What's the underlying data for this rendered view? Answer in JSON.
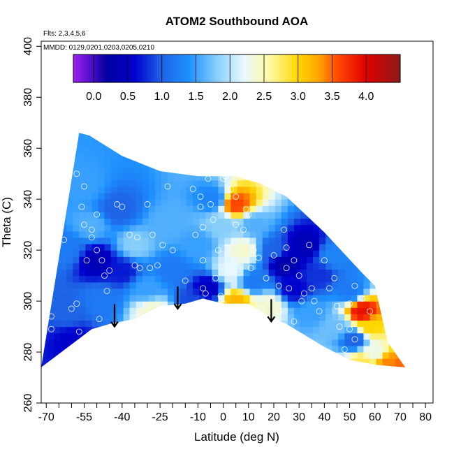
{
  "chart_data": {
    "type": "heatmap",
    "title": "ATOM2 Southbound AOA",
    "subtitle_flights": "Flts: 2,3,4,5,6",
    "subtitle_dates": "MMDD: 0129,0201,0203,0205,0210",
    "xlabel": "Latitude (deg N)",
    "ylabel": "Theta (C)",
    "xlim": [
      -72,
      83
    ],
    "ylim": [
      260,
      402
    ],
    "x_ticks_minor": [
      -70,
      -65,
      -60,
      -55,
      -50,
      -45,
      -40,
      -35,
      -30,
      -25,
      -20,
      -15,
      -10,
      -5,
      0,
      5,
      10,
      15,
      20,
      25,
      30,
      35,
      40,
      45,
      50,
      55,
      60,
      65,
      70,
      75,
      80
    ],
    "x_tick_labels": [
      {
        "v": -70,
        "t": "-70"
      },
      {
        "v": -55,
        "t": "-55"
      },
      {
        "v": -40,
        "t": "-40"
      },
      {
        "v": -25,
        "t": "-25"
      },
      {
        "v": -10,
        "t": "-10"
      },
      {
        "v": 0,
        "t": "0"
      },
      {
        "v": 10,
        "t": "10"
      },
      {
        "v": 20,
        "t": "20"
      },
      {
        "v": 30,
        "t": "30"
      },
      {
        "v": 40,
        "t": "40"
      },
      {
        "v": 50,
        "t": "50"
      },
      {
        "v": 60,
        "t": "60"
      },
      {
        "v": 70,
        "t": "70"
      },
      {
        "v": 80,
        "t": "80"
      }
    ],
    "y_ticks": [
      {
        "v": 260,
        "t": "260"
      },
      {
        "v": 280,
        "t": "280"
      },
      {
        "v": 300,
        "t": "300"
      },
      {
        "v": 320,
        "t": "320"
      },
      {
        "v": 340,
        "t": "340"
      },
      {
        "v": 360,
        "t": "360"
      },
      {
        "v": 380,
        "t": "380"
      },
      {
        "v": 400,
        "t": "400"
      }
    ],
    "colorbar": {
      "range": [
        -0.3,
        4.5
      ],
      "ticks": [
        {
          "v": 0.0,
          "t": "0.0"
        },
        {
          "v": 0.5,
          "t": "0.5"
        },
        {
          "v": 1.0,
          "t": "1.0"
        },
        {
          "v": 1.5,
          "t": "1.5"
        },
        {
          "v": 2.0,
          "t": "2.0"
        },
        {
          "v": 2.5,
          "t": "2.5"
        },
        {
          "v": 3.0,
          "t": "3.0"
        },
        {
          "v": 3.5,
          "t": "3.5"
        },
        {
          "v": 4.0,
          "t": "4.0"
        }
      ],
      "colors": [
        {
          "v": -0.3,
          "c": "#a020f0"
        },
        {
          "v": 0.2,
          "c": "#0000a0"
        },
        {
          "v": 0.6,
          "c": "#0000cd"
        },
        {
          "v": 1.0,
          "c": "#1e64e6"
        },
        {
          "v": 1.4,
          "c": "#1e90ff"
        },
        {
          "v": 1.8,
          "c": "#87cefa"
        },
        {
          "v": 2.2,
          "c": "#e8f8ff"
        },
        {
          "v": 2.6,
          "c": "#fff8a0"
        },
        {
          "v": 3.0,
          "c": "#ffd700"
        },
        {
          "v": 3.3,
          "c": "#ffa500"
        },
        {
          "v": 3.6,
          "c": "#ff4500"
        },
        {
          "v": 4.0,
          "c": "#e00000"
        },
        {
          "v": 4.5,
          "c": "#8b1a1a"
        }
      ]
    },
    "domain_top": [
      [
        -57,
        366
      ],
      [
        -53,
        365
      ],
      [
        -40,
        357
      ],
      [
        -25,
        351
      ],
      [
        -10,
        349
      ],
      [
        5,
        349
      ],
      [
        15,
        346
      ],
      [
        25,
        341
      ],
      [
        40,
        327
      ],
      [
        55,
        311
      ],
      [
        60,
        306
      ],
      [
        65,
        284
      ],
      [
        72,
        274
      ]
    ],
    "domain_bottom": [
      [
        -72,
        274
      ],
      [
        -60,
        283
      ],
      [
        -52,
        289
      ],
      [
        -45,
        291
      ],
      [
        -35,
        293
      ],
      [
        -25,
        298
      ],
      [
        -15,
        299
      ],
      [
        -8,
        301
      ],
      [
        0,
        299
      ],
      [
        10,
        299
      ],
      [
        18,
        294
      ],
      [
        25,
        291
      ],
      [
        30,
        288
      ],
      [
        35,
        285
      ],
      [
        40,
        282
      ],
      [
        50,
        277
      ],
      [
        60,
        275
      ],
      [
        72,
        274
      ]
    ],
    "field_anchors": [
      {
        "x": -62,
        "y": 320,
        "v": 1.2
      },
      {
        "x": -62,
        "y": 295,
        "v": 1.0
      },
      {
        "x": -60,
        "y": 285,
        "v": 0.6
      },
      {
        "x": -55,
        "y": 345,
        "v": 1.5
      },
      {
        "x": -52,
        "y": 330,
        "v": 1.6
      },
      {
        "x": -50,
        "y": 316,
        "v": 0.4
      },
      {
        "x": -48,
        "y": 300,
        "v": 1.2
      },
      {
        "x": -42,
        "y": 336,
        "v": 1.0
      },
      {
        "x": -40,
        "y": 312,
        "v": 0.7
      },
      {
        "x": -35,
        "y": 322,
        "v": 1.8
      },
      {
        "x": -30,
        "y": 305,
        "v": 1.5
      },
      {
        "x": -28,
        "y": 296,
        "v": 2.4
      },
      {
        "x": -22,
        "y": 330,
        "v": 1.6
      },
      {
        "x": -20,
        "y": 312,
        "v": 1.2
      },
      {
        "x": -12,
        "y": 300,
        "v": 0.9
      },
      {
        "x": -10,
        "y": 322,
        "v": 1.5
      },
      {
        "x": -6,
        "y": 305,
        "v": 0.5
      },
      {
        "x": -4,
        "y": 340,
        "v": 1.3
      },
      {
        "x": 0,
        "y": 330,
        "v": 1.8
      },
      {
        "x": 3,
        "y": 312,
        "v": 2.2
      },
      {
        "x": 5,
        "y": 338,
        "v": 3.6
      },
      {
        "x": 5,
        "y": 300,
        "v": 3.2
      },
      {
        "x": 8,
        "y": 320,
        "v": 2.4
      },
      {
        "x": 12,
        "y": 330,
        "v": 1.6
      },
      {
        "x": 12,
        "y": 308,
        "v": 1.2
      },
      {
        "x": 18,
        "y": 298,
        "v": 2.4
      },
      {
        "x": 20,
        "y": 320,
        "v": 1.0
      },
      {
        "x": 24,
        "y": 315,
        "v": 0.3
      },
      {
        "x": 28,
        "y": 305,
        "v": 0.6
      },
      {
        "x": 32,
        "y": 322,
        "v": 0.4
      },
      {
        "x": 35,
        "y": 296,
        "v": 1.5
      },
      {
        "x": 38,
        "y": 310,
        "v": 0.8
      },
      {
        "x": 44,
        "y": 318,
        "v": 1.3
      },
      {
        "x": 45,
        "y": 290,
        "v": 1.7
      },
      {
        "x": 50,
        "y": 304,
        "v": 1.2
      },
      {
        "x": 52,
        "y": 285,
        "v": 1.0
      },
      {
        "x": 55,
        "y": 296,
        "v": 3.9
      },
      {
        "x": 58,
        "y": 290,
        "v": 3.0
      },
      {
        "x": 55,
        "y": 276,
        "v": 2.8
      },
      {
        "x": 65,
        "y": 276,
        "v": 3.4
      },
      {
        "x": 60,
        "y": 280,
        "v": 2.3
      },
      {
        "x": 70,
        "y": 274,
        "v": 3.5
      }
    ],
    "arrows": [
      {
        "x": -43,
        "y_from": 296,
        "y_to": 290
      },
      {
        "x": -18,
        "y_from": 303,
        "y_to": 297
      },
      {
        "x": 19,
        "y_from": 298,
        "y_to": 292
      }
    ],
    "sample_points": [
      [
        -68,
        294
      ],
      [
        -68,
        289
      ],
      [
        -63,
        324
      ],
      [
        -58,
        350
      ],
      [
        -56,
        337
      ],
      [
        -55,
        345
      ],
      [
        -55,
        330
      ],
      [
        -54,
        316
      ],
      [
        -52,
        328
      ],
      [
        -52,
        325
      ],
      [
        -50,
        334
      ],
      [
        -50,
        320
      ],
      [
        -48,
        316
      ],
      [
        -47,
        310
      ],
      [
        -46,
        304
      ],
      [
        -45,
        312
      ],
      [
        -60,
        297
      ],
      [
        -58,
        299
      ],
      [
        -57,
        288
      ],
      [
        -56,
        281
      ],
      [
        -54,
        285
      ],
      [
        -52,
        286
      ],
      [
        -49,
        293
      ],
      [
        -42,
        338
      ],
      [
        -40,
        337
      ],
      [
        -37,
        326
      ],
      [
        -35,
        314
      ],
      [
        -34,
        325
      ],
      [
        -33,
        313
      ],
      [
        -30,
        338
      ],
      [
        -29,
        313
      ],
      [
        -28,
        326
      ],
      [
        -26,
        314
      ],
      [
        -24,
        322
      ],
      [
        -22,
        345
      ],
      [
        -20,
        320
      ],
      [
        -15,
        308
      ],
      [
        -12,
        344
      ],
      [
        -11,
        326
      ],
      [
        -9,
        341
      ],
      [
        -9,
        337
      ],
      [
        -8,
        329
      ],
      [
        -8,
        316
      ],
      [
        -8,
        305
      ],
      [
        -7,
        303
      ],
      [
        -6,
        348
      ],
      [
        -5,
        338
      ],
      [
        -4,
        332
      ],
      [
        -3,
        309
      ],
      [
        -2,
        320
      ],
      [
        -1,
        302
      ],
      [
        0,
        299
      ],
      [
        0,
        348
      ],
      [
        1,
        349
      ],
      [
        3,
        344
      ],
      [
        5,
        341
      ],
      [
        5,
        330
      ],
      [
        6,
        296
      ],
      [
        8,
        328
      ],
      [
        9,
        336
      ],
      [
        10,
        334
      ],
      [
        11,
        313
      ],
      [
        12,
        320
      ],
      [
        14,
        317
      ],
      [
        15,
        297
      ],
      [
        17,
        309
      ],
      [
        18,
        300
      ],
      [
        20,
        318
      ],
      [
        22,
        306
      ],
      [
        22,
        296
      ],
      [
        24,
        328
      ],
      [
        25,
        321
      ],
      [
        25,
        313
      ],
      [
        26,
        305
      ],
      [
        28,
        316
      ],
      [
        28,
        292
      ],
      [
        30,
        310
      ],
      [
        31,
        300
      ],
      [
        32,
        303
      ],
      [
        34,
        322
      ],
      [
        35,
        305
      ],
      [
        36,
        300
      ],
      [
        38,
        296
      ],
      [
        40,
        316
      ],
      [
        42,
        305
      ],
      [
        44,
        309
      ],
      [
        45,
        298
      ],
      [
        46,
        290
      ],
      [
        48,
        281
      ],
      [
        50,
        289
      ],
      [
        50,
        299
      ],
      [
        52,
        306
      ],
      [
        52,
        285
      ],
      [
        55,
        301
      ],
      [
        58,
        296
      ],
      [
        56,
        273
      ]
    ]
  }
}
